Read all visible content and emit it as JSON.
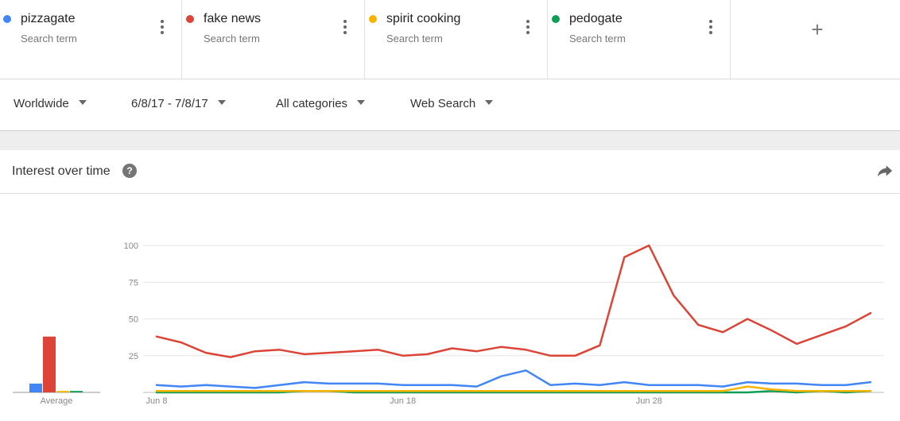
{
  "terms": [
    {
      "name": "pizzagate",
      "sub": "Search term",
      "color": "#4285f4"
    },
    {
      "name": "fake news",
      "sub": "Search term",
      "color": "#db4437"
    },
    {
      "name": "spirit cooking",
      "sub": "Search term",
      "color": "#f4b400"
    },
    {
      "name": "pedogate",
      "sub": "Search term",
      "color": "#0f9d58"
    }
  ],
  "add_term": "+",
  "filters": {
    "region": "Worldwide",
    "date_range": "6/8/17 - 7/8/17",
    "category": "All categories",
    "search_type": "Web Search"
  },
  "card": {
    "title": "Interest over time",
    "help": "?"
  },
  "chart_data": [
    {
      "type": "bar",
      "categories": [
        "Average"
      ],
      "series": [
        {
          "name": "pizzagate",
          "values": [
            6
          ],
          "color": "#4285f4"
        },
        {
          "name": "fake news",
          "values": [
            38
          ],
          "color": "#db4437"
        },
        {
          "name": "spirit cooking",
          "values": [
            1
          ],
          "color": "#f4b400"
        },
        {
          "name": "pedogate",
          "values": [
            1
          ],
          "color": "#0f9d58"
        }
      ],
      "xlabel": "Average",
      "ylim": [
        0,
        100
      ]
    },
    {
      "type": "line",
      "x": [
        "Jun 8",
        "Jun 9",
        "Jun 10",
        "Jun 11",
        "Jun 12",
        "Jun 13",
        "Jun 14",
        "Jun 15",
        "Jun 16",
        "Jun 17",
        "Jun 18",
        "Jun 19",
        "Jun 20",
        "Jun 21",
        "Jun 22",
        "Jun 23",
        "Jun 24",
        "Jun 25",
        "Jun 26",
        "Jun 27",
        "Jun 28",
        "Jun 29",
        "Jun 30",
        "Jul 1",
        "Jul 2",
        "Jul 3",
        "Jul 4",
        "Jul 5",
        "Jul 6",
        "Jul 7"
      ],
      "x_ticks": [
        "Jun 8",
        "Jun 18",
        "Jun 28"
      ],
      "y_ticks": [
        "100",
        "75",
        "50",
        "25"
      ],
      "ylim": [
        0,
        100
      ],
      "grid": true,
      "series": [
        {
          "name": "pizzagate",
          "color": "#4285f4",
          "values": [
            5,
            4,
            5,
            4,
            3,
            5,
            7,
            6,
            6,
            6,
            5,
            5,
            5,
            4,
            11,
            15,
            5,
            6,
            5,
            7,
            5,
            5,
            5,
            4,
            7,
            6,
            6,
            5,
            5,
            7
          ]
        },
        {
          "name": "fake news",
          "color": "#db4437",
          "values": [
            38,
            34,
            27,
            24,
            28,
            29,
            26,
            27,
            28,
            29,
            25,
            26,
            30,
            28,
            31,
            29,
            25,
            25,
            32,
            92,
            100,
            66,
            46,
            41,
            50,
            42,
            33,
            39,
            45,
            54
          ]
        },
        {
          "name": "spirit cooking",
          "color": "#f4b400",
          "values": [
            1,
            1,
            1,
            1,
            1,
            1,
            1,
            1,
            1,
            1,
            1,
            1,
            1,
            1,
            1,
            1,
            1,
            1,
            1,
            1,
            1,
            1,
            1,
            1,
            4,
            2,
            1,
            1,
            1,
            1
          ]
        },
        {
          "name": "pedogate",
          "color": "#0f9d58",
          "values": [
            0,
            0,
            0,
            0,
            0,
            0,
            1,
            1,
            0,
            0,
            0,
            0,
            0,
            0,
            0,
            0,
            0,
            0,
            0,
            0,
            0,
            0,
            0,
            0,
            0,
            1,
            0,
            1,
            0,
            1
          ]
        }
      ]
    }
  ]
}
